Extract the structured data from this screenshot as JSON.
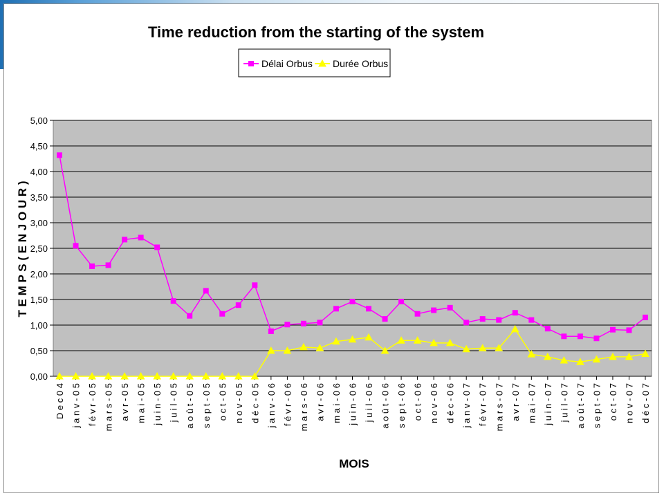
{
  "colors": {
    "plot_background": "#c0c0c0",
    "series_delai": "#ff00ff",
    "series_duree": "#ffff00"
  },
  "chart_data": {
    "type": "line",
    "title": "Time reduction from the starting of the system",
    "xlabel": "MOIS",
    "ylabel": "T E M P S  ( E N   J O U R )",
    "ylim": [
      0,
      5
    ],
    "yticks": [
      "0,00",
      "0,50",
      "1,00",
      "1,50",
      "2,00",
      "2,50",
      "3,00",
      "3,50",
      "4,00",
      "4,50",
      "5,00"
    ],
    "grid": "horizontal",
    "legend_position": "top-center",
    "categories": [
      "D e c  0 4",
      "j a n v - 0 5",
      "f é v r - 0 5",
      "m a r s - 0 5",
      "a v r - 0 5",
      "m a i - 0 5",
      "j u i n - 0 5",
      "j u i l - 0 5",
      "a o û t - 0 5",
      "s e p t - 0 5",
      "o c t - 0 5",
      "n o v - 0 5",
      "d é c - 0 5",
      "j a n v - 0 6",
      "f é v r - 0 6",
      "m a r s - 0 6",
      "a v r - 0 6",
      "m a i - 0 6",
      "j u i n - 0 6",
      "j u i l - 0 6",
      "a o û t - 0 6",
      "s e p t - 0 6",
      "o c t - 0 6",
      "n o v - 0 6",
      "d é c - 0 6",
      "j a n v - 0 7",
      "f é v r - 0 7",
      "m a r s - 0 7",
      "a v r - 0 7",
      "m a i - 0 7",
      "j u i n - 0 7",
      "j u i l - 0 7",
      "a o û t - 0 7",
      "s e p t - 0 7",
      "o c t - 0 7",
      "n o v - 0 7",
      "d é c - 0 7"
    ],
    "series": [
      {
        "name": "Délai Orbus",
        "color": "#ff00ff",
        "marker": "square",
        "values": [
          4.32,
          2.55,
          2.15,
          2.17,
          2.67,
          2.71,
          2.52,
          1.47,
          1.18,
          1.67,
          1.22,
          1.39,
          1.78,
          0.88,
          1.01,
          1.03,
          1.05,
          1.32,
          1.46,
          1.32,
          1.12,
          1.46,
          1.22,
          1.29,
          1.34,
          1.05,
          1.12,
          1.1,
          1.24,
          1.1,
          0.93,
          0.78,
          0.78,
          0.74,
          0.91,
          0.9,
          1.15
        ]
      },
      {
        "name": "Durée Orbus",
        "color": "#ffff00",
        "marker": "triangle",
        "values": [
          0,
          0,
          0,
          0,
          0,
          0,
          0,
          0,
          0,
          0,
          0,
          0,
          0,
          0.5,
          0.5,
          0.57,
          0.55,
          0.68,
          0.72,
          0.76,
          0.5,
          0.7,
          0.7,
          0.65,
          0.65,
          0.53,
          0.55,
          0.55,
          0.92,
          0.43,
          0.38,
          0.31,
          0.28,
          0.33,
          0.38,
          0.38,
          0.44
        ]
      }
    ]
  }
}
